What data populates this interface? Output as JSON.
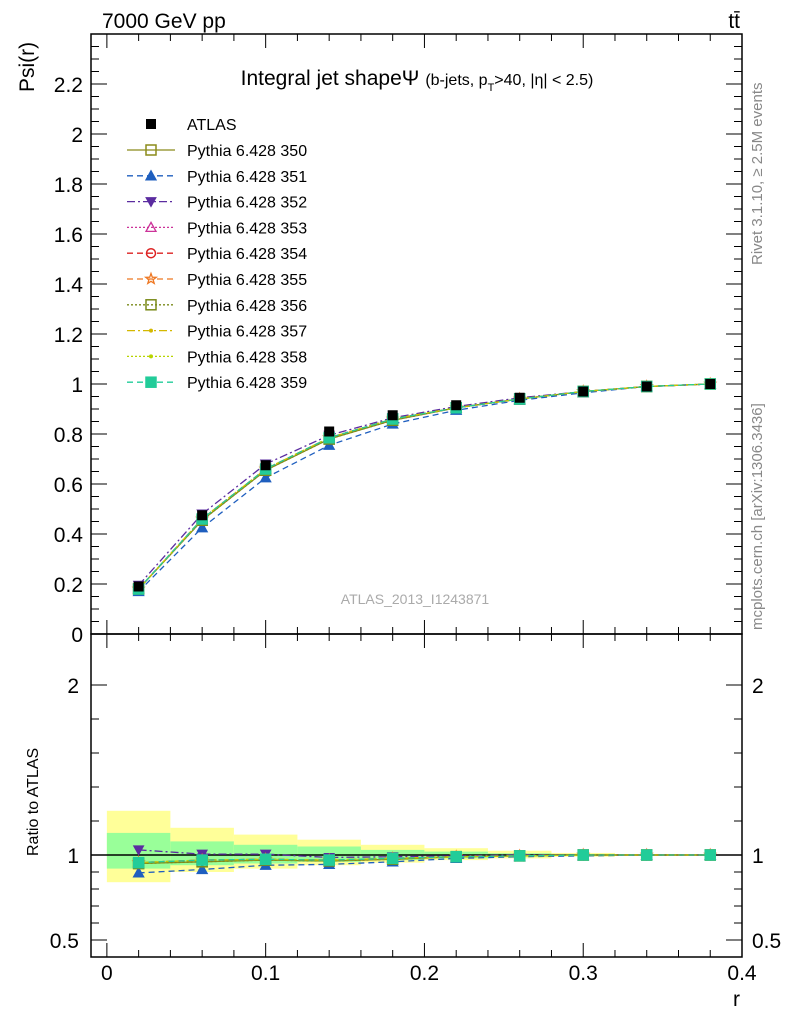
{
  "header": {
    "left_label": "7000 GeV pp",
    "right_label": "tt̄"
  },
  "side_labels": {
    "rivet": "Rivet 3.1.10, ≥ 2.5M events",
    "mcplots": "mcplots.cern.ch [arXiv:1306.3436]"
  },
  "watermark": "ATLAS_2013_I1243871",
  "chart_data": [
    {
      "type": "line",
      "title": "Integral jet shapeΨ (b-jets, p_T>40, |η| < 2.5)",
      "title_main": "Integral jet shapeΨ",
      "title_cut_open": "(b-jets, p",
      "title_cut_sub": "T",
      "title_cut_close": ">40, |η| < 2.5)",
      "ylabel": "Psi(r)",
      "xlabel": "r",
      "xlim": [
        -0.01,
        0.4
      ],
      "ylim": [
        0,
        2.4
      ],
      "ytick_labels": [
        "0",
        "0.2",
        "0.4",
        "0.6",
        "0.8",
        "1",
        "1.2",
        "1.4",
        "1.6",
        "1.8",
        "2",
        "2.2"
      ],
      "ytick_values": [
        0,
        0.2,
        0.4,
        0.6,
        0.8,
        1,
        1.2,
        1.4,
        1.6,
        1.8,
        2,
        2.2
      ],
      "x": [
        0.02,
        0.06,
        0.1,
        0.14,
        0.18,
        0.22,
        0.26,
        0.3,
        0.34,
        0.38
      ],
      "legend_position": "top-left",
      "data": {
        "name": "ATLAS",
        "values": [
          0.19,
          0.475,
          0.675,
          0.81,
          0.875,
          0.915,
          0.945,
          0.97,
          0.99,
          1.0
        ],
        "color": "#000000"
      },
      "series": [
        {
          "name": "Pythia 6.428 350",
          "color": "#8b8b1a",
          "dash": "",
          "marker": "square-open",
          "values": [
            0.18,
            0.455,
            0.655,
            0.78,
            0.855,
            0.905,
            0.94,
            0.97,
            0.99,
            1.0
          ]
        },
        {
          "name": "Pythia 6.428 351",
          "color": "#1f5fbf",
          "dash": "6,4",
          "marker": "triangle-up",
          "values": [
            0.17,
            0.425,
            0.625,
            0.755,
            0.84,
            0.895,
            0.935,
            0.965,
            0.99,
            1.0
          ]
        },
        {
          "name": "Pythia 6.428 352",
          "color": "#5b2ca0",
          "dash": "8,3,2,3",
          "marker": "triangle-down",
          "values": [
            0.195,
            0.48,
            0.68,
            0.795,
            0.865,
            0.91,
            0.945,
            0.97,
            0.99,
            1.0
          ]
        },
        {
          "name": "Pythia 6.428 353",
          "color": "#cc3399",
          "dash": "2,2",
          "marker": "triangle-open",
          "values": [
            0.18,
            0.46,
            0.66,
            0.785,
            0.86,
            0.905,
            0.94,
            0.97,
            0.99,
            1.0
          ]
        },
        {
          "name": "Pythia 6.428 354",
          "color": "#dd2222",
          "dash": "6,4",
          "marker": "circle-open",
          "values": [
            0.18,
            0.46,
            0.66,
            0.785,
            0.86,
            0.905,
            0.94,
            0.97,
            0.99,
            1.0
          ]
        },
        {
          "name": "Pythia 6.428 355",
          "color": "#ee7722",
          "dash": "6,4",
          "marker": "star-open",
          "values": [
            0.18,
            0.46,
            0.66,
            0.785,
            0.86,
            0.905,
            0.94,
            0.97,
            0.99,
            1.0
          ]
        },
        {
          "name": "Pythia 6.428 356",
          "color": "#7a8a1a",
          "dash": "2,2",
          "marker": "square-open",
          "values": [
            0.18,
            0.455,
            0.655,
            0.78,
            0.855,
            0.905,
            0.94,
            0.97,
            0.99,
            1.0
          ]
        },
        {
          "name": "Pythia 6.428 357",
          "color": "#d4b800",
          "dash": "8,3,2,3",
          "marker": "dot",
          "values": [
            0.18,
            0.46,
            0.66,
            0.785,
            0.86,
            0.905,
            0.94,
            0.97,
            0.99,
            1.0
          ]
        },
        {
          "name": "Pythia 6.428 358",
          "color": "#b8d400",
          "dash": "2,2",
          "marker": "dot",
          "values": [
            0.18,
            0.46,
            0.66,
            0.785,
            0.86,
            0.905,
            0.94,
            0.97,
            0.99,
            1.0
          ]
        },
        {
          "name": "Pythia 6.428 359",
          "color": "#22cc99",
          "dash": "6,4",
          "marker": "square-filled",
          "values": [
            0.18,
            0.46,
            0.66,
            0.785,
            0.86,
            0.905,
            0.94,
            0.97,
            0.99,
            1.0
          ]
        }
      ]
    },
    {
      "type": "line",
      "title": "",
      "ylabel": "Ratio to ATLAS",
      "xlabel": "r",
      "xlim": [
        -0.01,
        0.4
      ],
      "ylim": [
        0.4,
        2.3
      ],
      "ytick_labels": [
        "0.5",
        "1",
        "2"
      ],
      "ytick_values": [
        0.5,
        1,
        2
      ],
      "xtick_labels": [
        "0",
        "0.1",
        "0.2",
        "0.3",
        "0.4"
      ],
      "xtick_values": [
        0,
        0.1,
        0.2,
        0.3,
        0.4
      ],
      "x": [
        0.02,
        0.06,
        0.1,
        0.14,
        0.18,
        0.22,
        0.26,
        0.3,
        0.34,
        0.38
      ],
      "bins": [
        [
          0,
          0.04
        ],
        [
          0.04,
          0.08
        ],
        [
          0.08,
          0.12
        ],
        [
          0.12,
          0.16
        ],
        [
          0.16,
          0.2
        ],
        [
          0.2,
          0.24
        ],
        [
          0.24,
          0.28
        ],
        [
          0.28,
          0.32
        ],
        [
          0.32,
          0.36
        ],
        [
          0.36,
          0.4
        ]
      ],
      "band_stat": [
        [
          0.92,
          1.13
        ],
        [
          0.94,
          1.08
        ],
        [
          0.95,
          1.06
        ],
        [
          0.96,
          1.05
        ],
        [
          0.97,
          1.03
        ],
        [
          0.98,
          1.02
        ],
        [
          0.99,
          1.01
        ],
        [
          0.995,
          1.005
        ],
        [
          0.997,
          1.003
        ],
        [
          0.999,
          1.001
        ]
      ],
      "band_total": [
        [
          0.84,
          1.26
        ],
        [
          0.9,
          1.16
        ],
        [
          0.92,
          1.12
        ],
        [
          0.94,
          1.09
        ],
        [
          0.955,
          1.06
        ],
        [
          0.97,
          1.04
        ],
        [
          0.98,
          1.025
        ],
        [
          0.99,
          1.012
        ],
        [
          0.995,
          1.005
        ],
        [
          0.998,
          1.002
        ]
      ],
      "band_colors": {
        "total": "#ffff99",
        "stat": "#99ff99"
      },
      "series": [
        {
          "name": "Pythia 6.428 350",
          "values": [
            0.95,
            0.96,
            0.97,
            0.965,
            0.975,
            0.99,
            0.995,
            1.0,
            1.0,
            1.0
          ]
        },
        {
          "name": "Pythia 6.428 351",
          "values": [
            0.895,
            0.915,
            0.94,
            0.945,
            0.96,
            0.98,
            0.99,
            0.995,
            1.0,
            1.0
          ]
        },
        {
          "name": "Pythia 6.428 352",
          "values": [
            1.03,
            1.005,
            1.005,
            0.985,
            0.99,
            0.995,
            1.0,
            1.0,
            1.0,
            1.0
          ]
        },
        {
          "name": "Pythia 6.428 353",
          "values": [
            0.955,
            0.97,
            0.975,
            0.97,
            0.98,
            0.99,
            0.995,
            1.0,
            1.0,
            1.0
          ]
        },
        {
          "name": "Pythia 6.428 354",
          "values": [
            0.955,
            0.97,
            0.975,
            0.97,
            0.98,
            0.99,
            0.995,
            1.0,
            1.0,
            1.0
          ]
        },
        {
          "name": "Pythia 6.428 355",
          "values": [
            0.955,
            0.97,
            0.975,
            0.97,
            0.98,
            0.99,
            0.995,
            1.0,
            1.0,
            1.0
          ]
        },
        {
          "name": "Pythia 6.428 356",
          "values": [
            0.95,
            0.96,
            0.97,
            0.965,
            0.975,
            0.99,
            0.995,
            1.0,
            1.0,
            1.0
          ]
        },
        {
          "name": "Pythia 6.428 357",
          "values": [
            0.955,
            0.97,
            0.975,
            0.97,
            0.98,
            0.99,
            0.995,
            1.0,
            1.0,
            1.0
          ]
        },
        {
          "name": "Pythia 6.428 358",
          "values": [
            0.955,
            0.97,
            0.975,
            0.97,
            0.98,
            0.99,
            0.995,
            1.0,
            1.0,
            1.0
          ]
        },
        {
          "name": "Pythia 6.428 359",
          "values": [
            0.955,
            0.97,
            0.975,
            0.97,
            0.98,
            0.99,
            0.995,
            1.0,
            1.0,
            1.0
          ]
        }
      ]
    }
  ]
}
